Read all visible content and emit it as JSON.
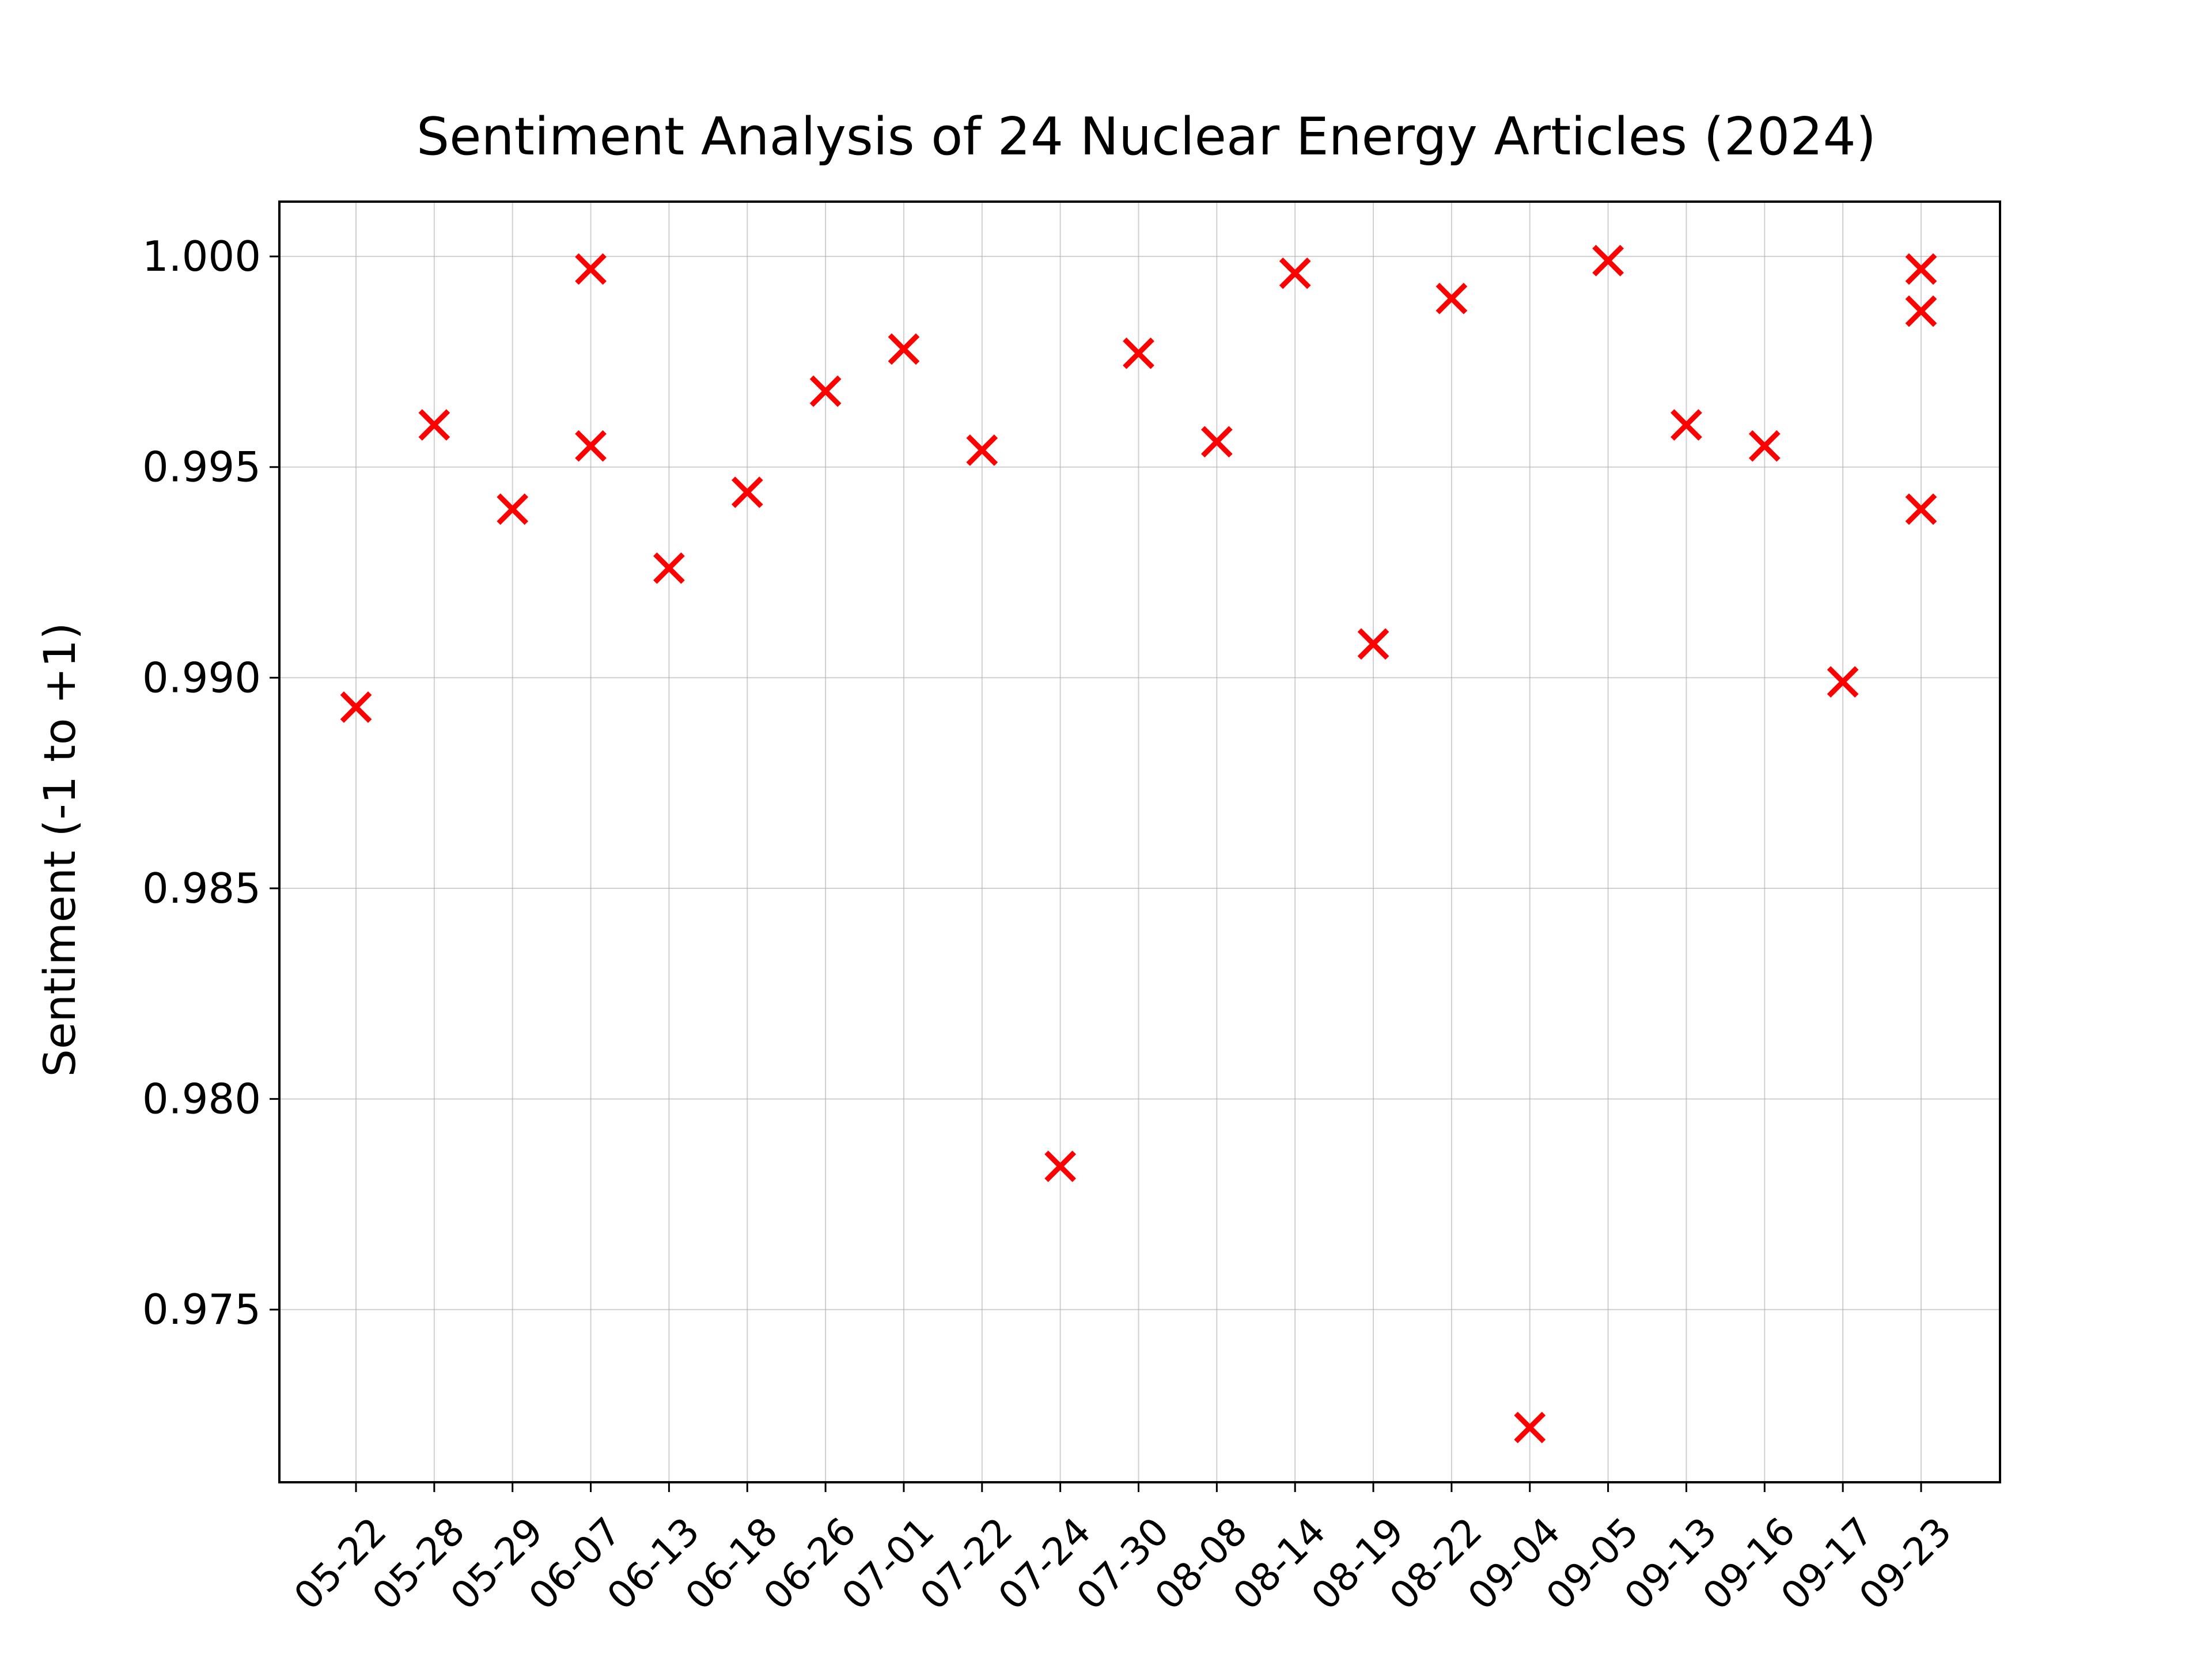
{
  "chart_data": {
    "type": "scatter",
    "title": "Sentiment Analysis of 24 Nuclear Energy Articles (2024)",
    "xlabel": "",
    "ylabel": "Sentiment (-1 to +1)",
    "categories": [
      "05-22",
      "05-28",
      "05-29",
      "06-07",
      "06-13",
      "06-18",
      "06-26",
      "07-01",
      "07-22",
      "07-24",
      "07-30",
      "08-08",
      "08-14",
      "08-19",
      "08-22",
      "09-04",
      "09-05",
      "09-13",
      "09-16",
      "09-17",
      "09-23"
    ],
    "points": [
      {
        "x": "05-22",
        "y": 0.9893
      },
      {
        "x": "05-28",
        "y": 0.996
      },
      {
        "x": "05-29",
        "y": 0.994
      },
      {
        "x": "06-07",
        "y": 0.9997
      },
      {
        "x": "06-07",
        "y": 0.9955
      },
      {
        "x": "06-13",
        "y": 0.9926
      },
      {
        "x": "06-18",
        "y": 0.9944
      },
      {
        "x": "06-26",
        "y": 0.9968
      },
      {
        "x": "07-01",
        "y": 0.9978
      },
      {
        "x": "07-22",
        "y": 0.9954
      },
      {
        "x": "07-24",
        "y": 0.9784
      },
      {
        "x": "07-30",
        "y": 0.9977
      },
      {
        "x": "08-08",
        "y": 0.9956
      },
      {
        "x": "08-14",
        "y": 0.9996
      },
      {
        "x": "08-19",
        "y": 0.9908
      },
      {
        "x": "08-22",
        "y": 0.999
      },
      {
        "x": "09-04",
        "y": 0.9722
      },
      {
        "x": "09-05",
        "y": 0.9999
      },
      {
        "x": "09-13",
        "y": 0.996
      },
      {
        "x": "09-16",
        "y": 0.9955
      },
      {
        "x": "09-17",
        "y": 0.9899
      },
      {
        "x": "09-23",
        "y": 0.9997
      },
      {
        "x": "09-23",
        "y": 0.9987
      },
      {
        "x": "09-23",
        "y": 0.994
      }
    ],
    "yticks": [
      "0.975",
      "0.980",
      "0.985",
      "0.990",
      "0.995",
      "1.000"
    ],
    "ylim": [
      0.9709,
      1.0013
    ],
    "grid": true,
    "marker": "x",
    "marker_color": "#ff0000"
  }
}
